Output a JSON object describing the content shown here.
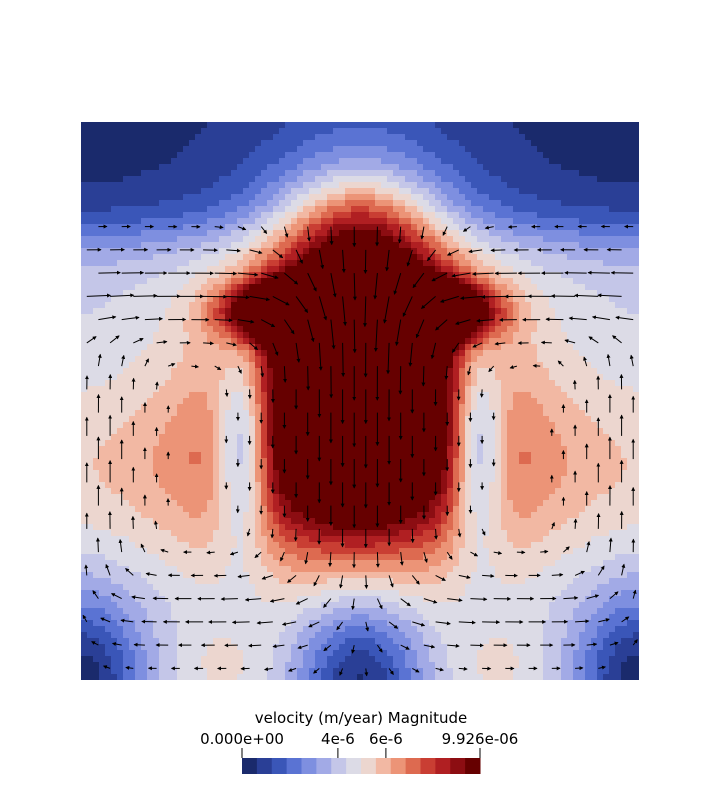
{
  "chart_data": {
    "type": "heatmap",
    "title": "",
    "field": "velocity (m/year) Magnitude",
    "value_range": [
      0.0,
      9.926e-06
    ],
    "domain": {
      "x": [
        0,
        1
      ],
      "y": [
        0,
        1
      ]
    },
    "overlay": "velocity vector arrows (glyphs)",
    "colormap": {
      "name": "Cool to Warm (discretized)",
      "bands": 16,
      "colors": [
        "#1a2a6c",
        "#2a3f96",
        "#3a56b8",
        "#5a73d3",
        "#7e8fe0",
        "#a2aae6",
        "#c4c6e8",
        "#dcdbe6",
        "#ecd6cf",
        "#f2b8a3",
        "#ec9477",
        "#dd6a50",
        "#c93e33",
        "#b01f22",
        "#8c0d12",
        "#660000"
      ]
    },
    "legend": {
      "title": "velocity (m/year) Magnitude",
      "ticks": [
        {
          "value": 0.0,
          "label": "0.000e+00"
        },
        {
          "value": 4e-06,
          "label": "4e-6"
        },
        {
          "value": 6e-06,
          "label": "6e-6"
        },
        {
          "value": 9.926e-06,
          "label": "9.926e-06"
        }
      ]
    },
    "features": [
      {
        "name": "central-downwelling-plume",
        "x": 0.5,
        "y": 0.62,
        "rx": 0.17,
        "ry": 0.22,
        "level": 0.99
      },
      {
        "name": "left-shoulder-max",
        "x": 0.36,
        "y": 0.66,
        "rx": 0.12,
        "ry": 0.05,
        "level": 1.0
      },
      {
        "name": "right-shoulder-max",
        "x": 0.64,
        "y": 0.66,
        "rx": 0.12,
        "ry": 0.05,
        "level": 1.0
      },
      {
        "name": "left-flank-stagnation",
        "x": 0.3,
        "y": 0.43,
        "level": 0.05
      },
      {
        "name": "right-flank-stagnation",
        "x": 0.7,
        "y": 0.43,
        "level": 0.05
      },
      {
        "name": "bottom-left-stagnation",
        "x": 0.02,
        "y": 0.0,
        "level": 0.0
      },
      {
        "name": "bottom-center-stagnation",
        "x": 0.5,
        "y": 0.0,
        "level": 0.0
      },
      {
        "name": "bottom-right-stagnation",
        "x": 0.98,
        "y": 0.0,
        "level": 0.0
      },
      {
        "name": "top-quiescent-layer",
        "y": [
          0.8,
          1.0
        ],
        "level": 0.03
      }
    ]
  }
}
